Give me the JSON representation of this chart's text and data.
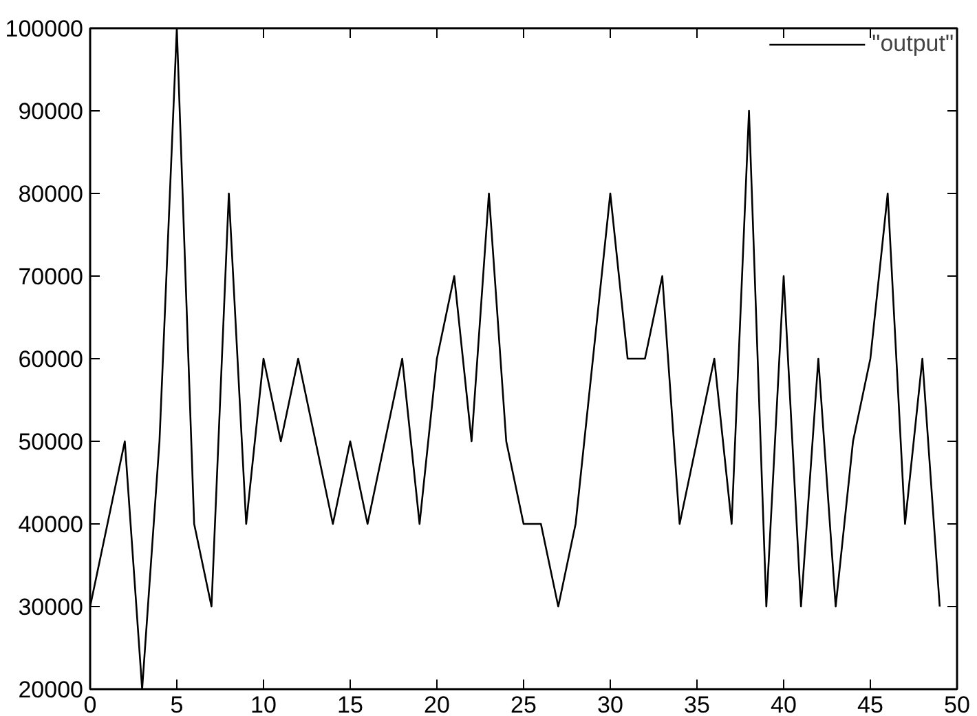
{
  "chart_data": {
    "type": "line",
    "x": [
      0,
      1,
      2,
      3,
      4,
      5,
      6,
      7,
      8,
      9,
      10,
      11,
      12,
      13,
      14,
      15,
      16,
      17,
      18,
      19,
      20,
      21,
      22,
      23,
      24,
      25,
      26,
      27,
      28,
      29,
      30,
      31,
      32,
      33,
      34,
      35,
      36,
      37,
      38,
      39,
      40,
      41,
      42,
      43,
      44,
      45,
      46,
      47,
      48,
      49
    ],
    "series": [
      {
        "name": "\"output\"",
        "color": "#000000",
        "values": [
          30000,
          40000,
          50000,
          20000,
          50000,
          100000,
          40000,
          30000,
          80000,
          40000,
          60000,
          50000,
          60000,
          50000,
          40000,
          50000,
          40000,
          50000,
          60000,
          40000,
          60000,
          70000,
          50000,
          80000,
          50000,
          40000,
          40000,
          30000,
          40000,
          60000,
          80000,
          60000,
          60000,
          70000,
          40000,
          50000,
          60000,
          40000,
          90000,
          30000,
          70000,
          30000,
          60000,
          30000,
          50000,
          60000,
          80000,
          40000,
          60000,
          30000
        ]
      }
    ],
    "xlim": [
      0,
      50
    ],
    "xticks": [
      0,
      5,
      10,
      15,
      20,
      25,
      30,
      35,
      40,
      45,
      50
    ],
    "ylim": [
      20000,
      100000
    ],
    "yticks": [
      20000,
      30000,
      40000,
      50000,
      60000,
      70000,
      80000,
      90000,
      100000
    ],
    "legend": "top right",
    "grid": false,
    "line_style": "solid"
  }
}
